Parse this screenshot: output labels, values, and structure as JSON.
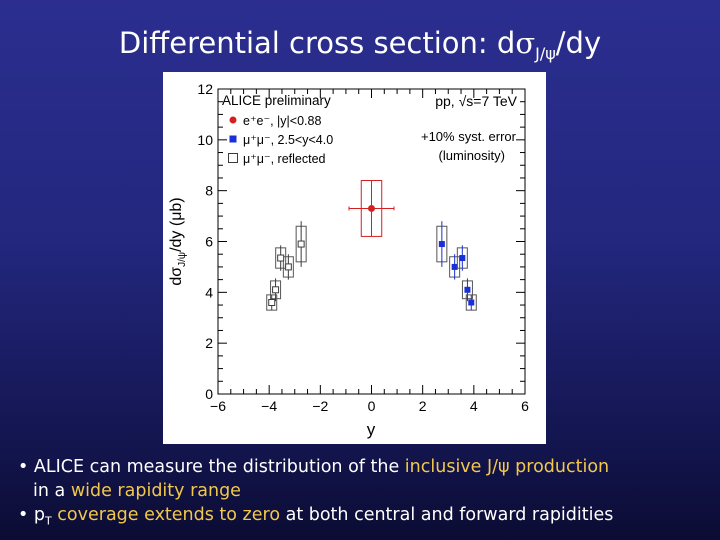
{
  "slide": {
    "title_prefix": "Differential cross section: d",
    "title_sigma": "σ",
    "title_sub": "J/ψ",
    "title_suffix": "/dy"
  },
  "bullets": {
    "b1_pre": "ALICE can measure the distribution of the ",
    "b1_hl": "inclusive J/ψ production",
    "b1_line2_pre": "in a ",
    "b1_line2_hl": "wide rapidity range",
    "b2_pT_main": "p",
    "b2_pT_sub": "T",
    "b2_hl": " coverage extends to zero",
    "b2_post": " at both central and forward rapidities"
  },
  "colors": {
    "highlight": "#f2c84b",
    "red_series": "#d42020",
    "blue_series": "#1b2fd6",
    "reflected_series": "#3c3c3c",
    "background_top": "#2b2e8f",
    "background_bottom": "#0b0c33"
  },
  "chart_data": {
    "type": "scatter",
    "xlabel": "y",
    "ylabel_main": "dσ",
    "ylabel_sub": "J/ψ",
    "ylabel_tail": "/dy (μb)",
    "xlim": [
      -6,
      6
    ],
    "ylim": [
      0,
      12
    ],
    "x_ticks": [
      -6,
      -4,
      -2,
      0,
      2,
      4,
      6
    ],
    "y_ticks": [
      0,
      2,
      4,
      6,
      8,
      10,
      12
    ],
    "grid": false,
    "legend_title": "ALICE preliminary",
    "legend": [
      {
        "marker": "filled-circle",
        "color": "#d42020",
        "label": "e⁺e⁻, |y|<0.88"
      },
      {
        "marker": "filled-square",
        "color": "#1b2fd6",
        "label": "μ⁺μ⁻, 2.5<y<4.0"
      },
      {
        "marker": "open-square",
        "color": "#3c3c3c",
        "label": "μ⁺μ⁻, reflected"
      }
    ],
    "annotation_1": "pp, √s=7 TeV",
    "annotation_2": "+10% syst. error",
    "annotation_3": "(luminosity)",
    "series": [
      {
        "name": "e⁺e⁻, |y|<0.88",
        "marker": "filled-circle",
        "points": [
          {
            "x": 0,
            "y": 7.3,
            "xerr": 0.88,
            "yerr": 1.1,
            "sys": 1.1
          }
        ]
      },
      {
        "name": "μ⁺μ⁻, 2.5<y<4.0",
        "marker": "filled-square",
        "points": [
          {
            "x": 2.75,
            "y": 5.9,
            "xerr": 0,
            "yerr": 0.9,
            "sys": 0.7
          },
          {
            "x": 3.25,
            "y": 5.0,
            "xerr": 0,
            "yerr": 0.5,
            "sys": 0.4
          },
          {
            "x": 3.55,
            "y": 5.35,
            "xerr": 0,
            "yerr": 0.5,
            "sys": 0.4
          },
          {
            "x": 3.75,
            "y": 4.1,
            "xerr": 0,
            "yerr": 0.45,
            "sys": 0.35
          },
          {
            "x": 3.9,
            "y": 3.6,
            "xerr": 0,
            "yerr": 0.3,
            "sys": 0.3
          }
        ]
      },
      {
        "name": "μ⁺μ⁻, reflected",
        "marker": "open-square",
        "points": [
          {
            "x": -2.75,
            "y": 5.9,
            "xerr": 0,
            "yerr": 0.9,
            "sys": 0.7
          },
          {
            "x": -3.25,
            "y": 5.0,
            "xerr": 0,
            "yerr": 0.5,
            "sys": 0.4
          },
          {
            "x": -3.55,
            "y": 5.35,
            "xerr": 0,
            "yerr": 0.5,
            "sys": 0.4
          },
          {
            "x": -3.75,
            "y": 4.1,
            "xerr": 0,
            "yerr": 0.45,
            "sys": 0.35
          },
          {
            "x": -3.9,
            "y": 3.6,
            "xerr": 0,
            "yerr": 0.3,
            "sys": 0.3
          }
        ]
      }
    ]
  }
}
